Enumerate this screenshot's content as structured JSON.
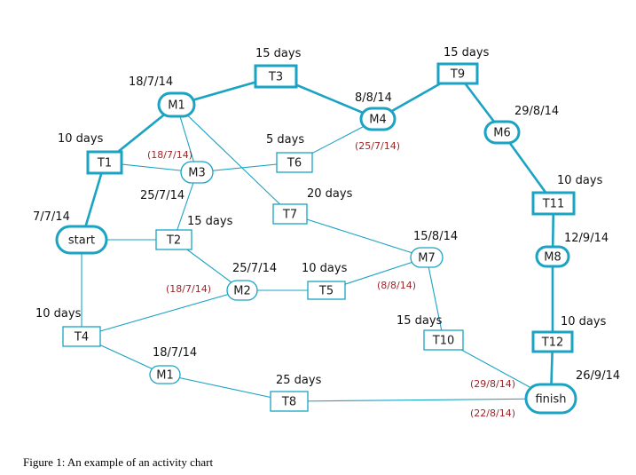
{
  "colors": {
    "accent": "#1aa3c2",
    "date_red": "#a0262a",
    "text": "#111111"
  },
  "nodes": {
    "start": {
      "label": "start",
      "shape": "oval",
      "critical": true
    },
    "T1": {
      "label": "T1",
      "shape": "rect",
      "critical": true
    },
    "M1a": {
      "label": "M1",
      "shape": "oval",
      "critical": true
    },
    "T3": {
      "label": "T3",
      "shape": "rect",
      "critical": true
    },
    "M4": {
      "label": "M4",
      "shape": "oval",
      "critical": true
    },
    "T9": {
      "label": "T9",
      "shape": "rect",
      "critical": true
    },
    "M6": {
      "label": "M6",
      "shape": "oval",
      "critical": true
    },
    "T11": {
      "label": "T11",
      "shape": "rect",
      "critical": true
    },
    "M8": {
      "label": "M8",
      "shape": "oval",
      "critical": true
    },
    "T12": {
      "label": "T12",
      "shape": "rect",
      "critical": true
    },
    "finish": {
      "label": "finish",
      "shape": "oval",
      "critical": true
    },
    "M3": {
      "label": "M3",
      "shape": "oval",
      "critical": false
    },
    "T6": {
      "label": "T6",
      "shape": "rect",
      "critical": false
    },
    "T2": {
      "label": "T2",
      "shape": "rect",
      "critical": false
    },
    "T7": {
      "label": "T7",
      "shape": "rect",
      "critical": false
    },
    "M2": {
      "label": "M2",
      "shape": "oval",
      "critical": false
    },
    "T5": {
      "label": "T5",
      "shape": "rect",
      "critical": false
    },
    "M7": {
      "label": "M7",
      "shape": "oval",
      "critical": false
    },
    "T10": {
      "label": "T10",
      "shape": "rect",
      "critical": false
    },
    "T4": {
      "label": "T4",
      "shape": "rect",
      "critical": false
    },
    "M1b": {
      "label": "M1",
      "shape": "oval",
      "critical": false
    },
    "T8": {
      "label": "T8",
      "shape": "rect",
      "critical": false
    }
  },
  "edges": [
    {
      "from": "start",
      "to": "T1",
      "critical": true
    },
    {
      "from": "T1",
      "to": "M1a",
      "critical": true
    },
    {
      "from": "M1a",
      "to": "T3",
      "critical": true
    },
    {
      "from": "T3",
      "to": "M4",
      "critical": true
    },
    {
      "from": "M4",
      "to": "T9",
      "critical": true
    },
    {
      "from": "T9",
      "to": "M6",
      "critical": true
    },
    {
      "from": "M6",
      "to": "T11",
      "critical": true
    },
    {
      "from": "T11",
      "to": "M8",
      "critical": true
    },
    {
      "from": "M8",
      "to": "T12",
      "critical": true
    },
    {
      "from": "T12",
      "to": "finish",
      "critical": true
    },
    {
      "from": "T1",
      "to": "M3",
      "critical": false
    },
    {
      "from": "M1a",
      "to": "M3",
      "critical": false
    },
    {
      "from": "M3",
      "to": "T6",
      "critical": false
    },
    {
      "from": "T6",
      "to": "M4",
      "critical": false
    },
    {
      "from": "M1a",
      "to": "T7",
      "critical": false
    },
    {
      "from": "T7",
      "to": "M7",
      "critical": false
    },
    {
      "from": "M3",
      "to": "T2",
      "critical": false
    },
    {
      "from": "start",
      "to": "T2",
      "critical": false
    },
    {
      "from": "start",
      "to": "T4",
      "critical": false
    },
    {
      "from": "T2",
      "to": "M2",
      "critical": false
    },
    {
      "from": "T4",
      "to": "M2",
      "critical": false
    },
    {
      "from": "M2",
      "to": "T5",
      "critical": false
    },
    {
      "from": "T5",
      "to": "M7",
      "critical": false
    },
    {
      "from": "M7",
      "to": "T10",
      "critical": false
    },
    {
      "from": "T10",
      "to": "finish",
      "critical": false
    },
    {
      "from": "T4",
      "to": "M1b",
      "critical": false
    },
    {
      "from": "M1b",
      "to": "T8",
      "critical": false
    },
    {
      "from": "T8",
      "to": "finish",
      "critical": false
    }
  ],
  "labels": {
    "t3_days": "15 days",
    "t9_days": "15 days",
    "m1a_date": "18/7/14",
    "m4_date": "8/8/14",
    "m4_early": "(25/7/14)",
    "m6_date": "29/8/14",
    "t1_days": "10 days",
    "t6_days": "5 days",
    "m3_early": "(18/7/14)",
    "m3_date": "25/7/14",
    "t7_days": "20 days",
    "t11_days": "10 days",
    "start_date": "7/7/14",
    "t2_days": "15 days",
    "m7_date": "15/8/14",
    "m8_date": "12/9/14",
    "m2_date": "25/7/14",
    "t5_days": "10 days",
    "m2_early": "(18/7/14)",
    "m7_early": "(8/8/14)",
    "t4_days": "10 days",
    "t10_days": "15 days",
    "t12_days": "10 days",
    "m1b_date": "18/7/14",
    "t8_days": "25 days",
    "finish_date": "26/9/14",
    "finish_early_a": "(29/8/14)",
    "finish_early_b": "(22/8/14)"
  },
  "caption": "Figure 1: An example of an activity chart"
}
